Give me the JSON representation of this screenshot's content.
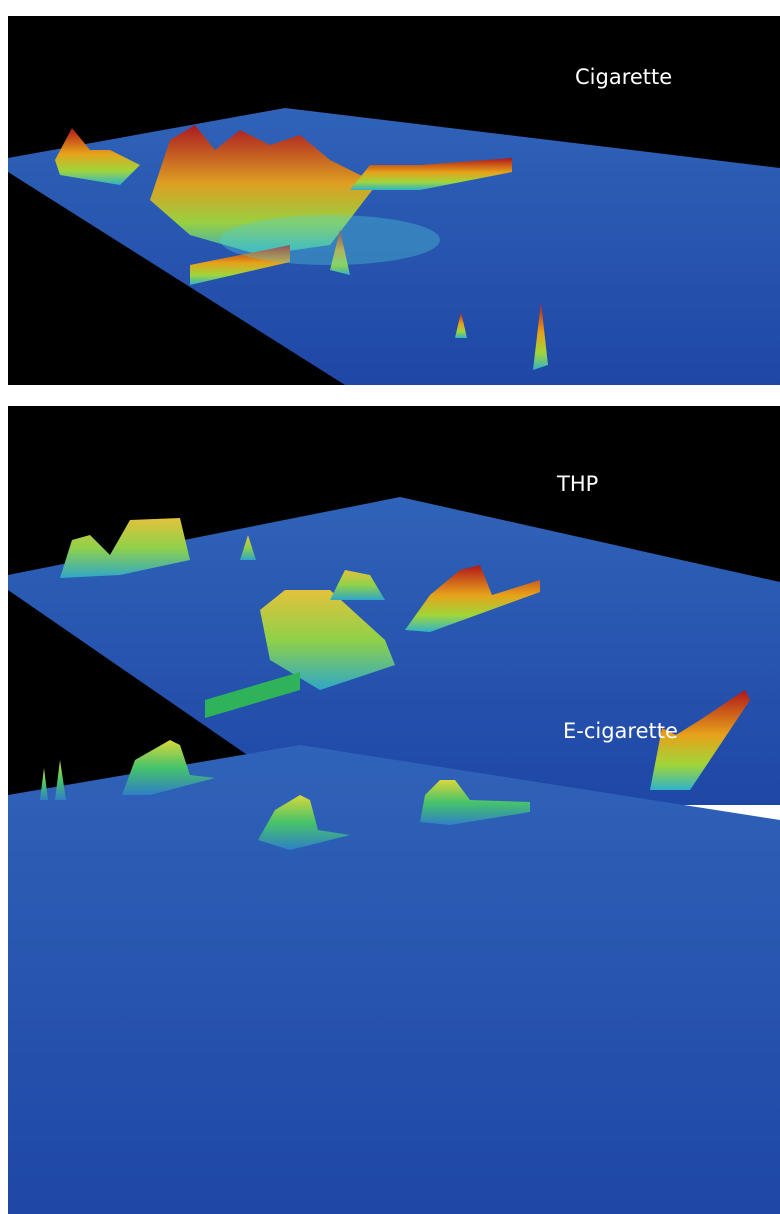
{
  "panels": [
    {
      "label": "Cigarette"
    },
    {
      "label": "THP"
    },
    {
      "label": "E-cigarette"
    }
  ]
}
